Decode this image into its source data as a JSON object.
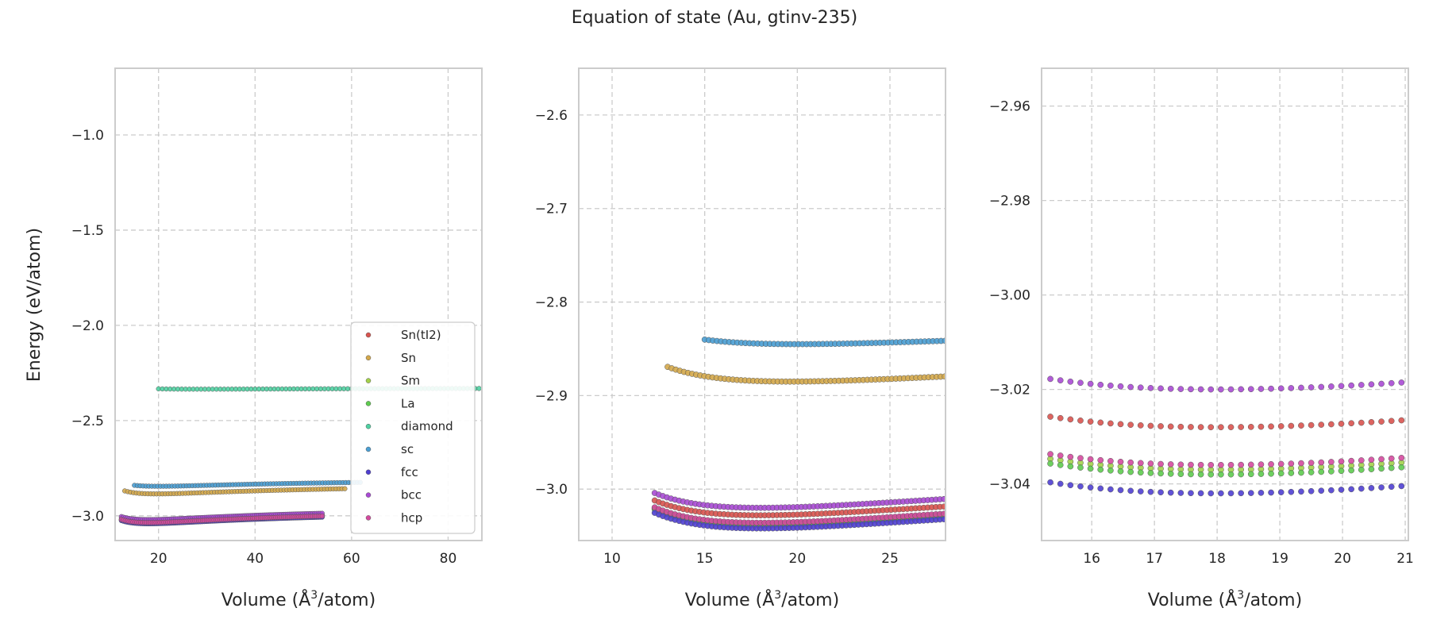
{
  "suptitle": "Equation of state (Au, gtinv-235)",
  "ylabel": "Energy (eV/atom)",
  "xlabel_prefix": "Volume (",
  "xlabel_unit": "Å",
  "xlabel_power": "3",
  "xlabel_suffix": "/atom)",
  "colors": {
    "Sn(tI2)": "#d9534f",
    "Sn": "#d4a84b",
    "Sm": "#a3d14a",
    "La": "#5ecb4f",
    "diamond": "#4fd1a2",
    "sc": "#4a9fd4",
    "fcc": "#4f3fd1",
    "bcc": "#a94ad4",
    "hcp": "#d44a9f"
  },
  "chart_data": [
    {
      "type": "scatter",
      "xlim": [
        11,
        87
      ],
      "ylim": [
        -3.13,
        -0.65
      ],
      "xticks": [
        20,
        40,
        60,
        80
      ],
      "yticks": [
        -3.0,
        -2.5,
        -2.0,
        -1.5,
        -1.0
      ],
      "grid": true,
      "legend": "bottom-right",
      "legend_entries": [
        "Sn(tI2)",
        "Sn",
        "Sm",
        "La",
        "diamond",
        "sc",
        "fcc",
        "bcc",
        "hcp"
      ],
      "series": [
        {
          "name": "diamond",
          "min_x": 29.0,
          "min_y": -2.335,
          "B": 0.00055,
          "Bp": 5.0,
          "x_range": [
            20.0,
            86.5
          ],
          "dx": 0.8
        },
        {
          "name": "sc",
          "min_x": 20.0,
          "min_y": -2.845,
          "B": 0.0044,
          "Bp": 5.0,
          "x_range": [
            15.0,
            62.0
          ],
          "dx": 0.6
        },
        {
          "name": "Sn",
          "min_x": 19.6,
          "min_y": -2.885,
          "B": 0.0062,
          "Bp": 5.0,
          "x_range": [
            13.0,
            59.0
          ],
          "dx": 0.6
        },
        {
          "name": "Sn(tI2)",
          "min_x": 18.0,
          "min_y": -3.028,
          "B": 0.0082,
          "Bp": 5.0,
          "x_range": [
            12.3,
            54.0
          ],
          "dx": 0.4
        },
        {
          "name": "Sm",
          "min_x": 18.0,
          "min_y": -3.037,
          "B": 0.0085,
          "Bp": 5.0,
          "x_range": [
            12.3,
            54.0
          ],
          "dx": 0.4
        },
        {
          "name": "La",
          "min_x": 18.0,
          "min_y": -3.038,
          "B": 0.0085,
          "Bp": 5.0,
          "x_range": [
            12.3,
            54.0
          ],
          "dx": 0.4
        },
        {
          "name": "fcc",
          "min_x": 18.0,
          "min_y": -3.042,
          "B": 0.0086,
          "Bp": 5.0,
          "x_range": [
            12.3,
            54.0
          ],
          "dx": 0.4
        },
        {
          "name": "bcc",
          "min_x": 18.0,
          "min_y": -3.02,
          "B": 0.0082,
          "Bp": 5.0,
          "x_range": [
            12.3,
            54.0
          ],
          "dx": 0.4
        },
        {
          "name": "hcp",
          "min_x": 18.0,
          "min_y": -3.036,
          "B": 0.0085,
          "Bp": 5.0,
          "x_range": [
            12.3,
            54.0
          ],
          "dx": 0.4
        }
      ]
    },
    {
      "type": "scatter",
      "xlim": [
        8.2,
        28.0
      ],
      "ylim": [
        -3.055,
        -2.55
      ],
      "xticks": [
        10,
        15,
        20,
        25
      ],
      "yticks": [
        -3.0,
        -2.9,
        -2.8,
        -2.7,
        -2.6
      ],
      "grid": true
    },
    {
      "type": "scatter",
      "xlim": [
        15.2,
        21.05
      ],
      "ylim": [
        -3.052,
        -2.952
      ],
      "xticks": [
        16,
        17,
        18,
        19,
        20,
        21
      ],
      "yticks": [
        -3.04,
        -3.02,
        -3.0,
        -2.98,
        -2.96
      ],
      "grid": true
    }
  ]
}
